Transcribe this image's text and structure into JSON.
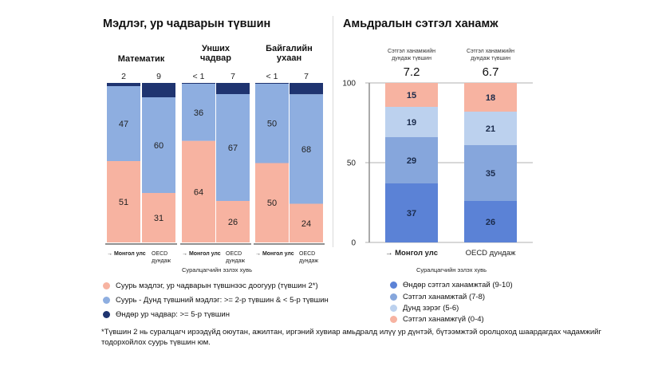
{
  "left": {
    "title": "Мэдлэг, ур чадварын түвшин",
    "subjects": [
      "Математик",
      "Унших\nчадвар",
      "Байгалийн\nухаан"
    ],
    "x_axis_title": "Суралцагчийн эзлэх хувь",
    "legend": [
      {
        "label": "Суурь мэдлэг, ур чадварын түвшнээс доогуур  (түвшин 2*)",
        "color": "#f7b3a1"
      },
      {
        "label": "Суурь - Дунд түвшний мэдлэг: >= 2-р түвшин & < 5-р түвшин",
        "color": "#8eaee0"
      },
      {
        "label": "Өндөр ур чадвар: >= 5-р түвшин",
        "color": "#1f3470"
      }
    ]
  },
  "right": {
    "title": "Амьдралын сэтгэл ханамж",
    "header_label": "Сэтгэл ханамжийн дундаж түвшин",
    "x_axis_title": "Суралцагчийн эзлэх хувь",
    "legend": [
      {
        "label": "Өндөр сэтгэл ханамжтай (9-10)",
        "color": "#5b82d6"
      },
      {
        "label": "Сэтгэл ханамжтай (7-8)",
        "color": "#86a6dc"
      },
      {
        "label": "Дунд зэрэг (5-6)",
        "color": "#bcd1ee"
      },
      {
        "label": "Сэтгэл ханамжгүй (0-4)",
        "color": "#f7b3a1"
      }
    ]
  },
  "footnote": "*Түвшин 2 нь суралцагч ирээдүйд оюутан, ажилтан, иргэний хувиар амьдралд илүү ур дүнтэй, бүтээмжтэй оролцоход шаардагдах чадамжийг тодорхойлох суурь түвшин юм.",
  "chart_data": [
    {
      "type": "bar",
      "stacked": true,
      "title": "Мэдлэг, ур чадварын түвшин",
      "xlabel": "Суралцагчийн эзлэх хувь",
      "ylim": [
        0,
        100
      ],
      "groups": [
        {
          "name": "Математик",
          "bars": [
            {
              "category": "→ Монгол улс",
              "values": [
                51,
                47,
                2
              ],
              "top_label": "2"
            },
            {
              "category": "OECD дундаж",
              "values": [
                31,
                60,
                9
              ],
              "top_label": "9"
            }
          ]
        },
        {
          "name": "Унших\nчадвар",
          "bars": [
            {
              "category": "→ Монгол улс",
              "values": [
                64,
                36,
                0.5
              ],
              "top_label": "< 1"
            },
            {
              "category": "OECD дундаж",
              "values": [
                26,
                67,
                7
              ],
              "top_label": "7"
            }
          ]
        },
        {
          "name": "Байгалийн\nухаан",
          "bars": [
            {
              "category": "→ Монгол улс",
              "values": [
                50,
                50,
                0.5
              ],
              "top_label": "< 1"
            },
            {
              "category": "OECD дундаж",
              "values": [
                24,
                68,
                7
              ],
              "top_label": "7"
            }
          ]
        }
      ],
      "series": [
        {
          "name": "Суурь мэдлэг, ур чадварын түвшнээс доогуур  (түвшин 2*)",
          "color": "#f7b3a1"
        },
        {
          "name": "Суурь - Дунд түвшний мэдлэг: >= 2-р түвшин & < 5-р түвшин",
          "color": "#8eaee0"
        },
        {
          "name": "Өндөр ур чадвар: >= 5-р түвшин",
          "color": "#1f3470"
        }
      ]
    },
    {
      "type": "bar",
      "stacked": true,
      "title": "Амьдралын сэтгэл ханамж",
      "xlabel": "Суралцагчийн эзлэх хувь",
      "ylim": [
        0,
        100
      ],
      "yticks": [
        0,
        50,
        100
      ],
      "categories": [
        "→ Монгол улс",
        "OECD дундаж"
      ],
      "means": [
        7.2,
        6.7
      ],
      "series": [
        {
          "name": "Өндөр сэтгэл ханамжтай (9-10)",
          "values": [
            37,
            26
          ],
          "color": "#5b82d6"
        },
        {
          "name": "Сэтгэл ханамжтай (7-8)",
          "values": [
            29,
            35
          ],
          "color": "#86a6dc"
        },
        {
          "name": "Дунд зэрэг (5-6)",
          "values": [
            19,
            21
          ],
          "color": "#bcd1ee"
        },
        {
          "name": "Сэтгэл ханамжгүй (0-4)",
          "values": [
            15,
            18
          ],
          "color": "#f7b3a1"
        }
      ]
    }
  ]
}
